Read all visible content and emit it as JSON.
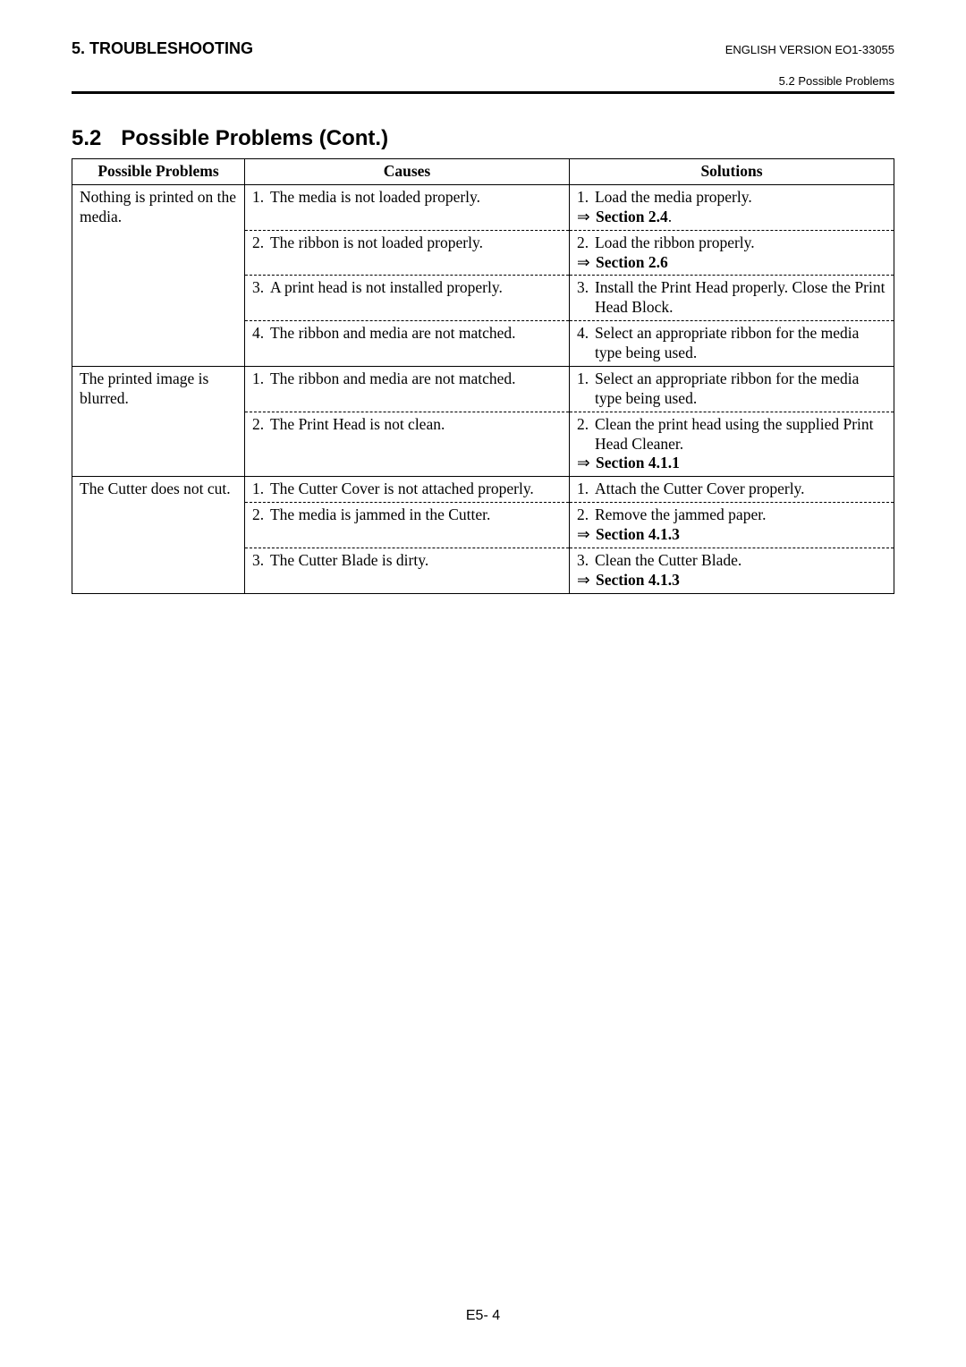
{
  "header": {
    "left": "5. TROUBLESHOOTING",
    "right": "ENGLISH VERSION EO1-33055",
    "sub": "5.2 Possible Problems"
  },
  "section": {
    "number": "5.2",
    "title": "Possible Problems (Cont.)"
  },
  "table": {
    "headers": {
      "problems": "Possible Problems",
      "causes": "Causes",
      "solutions": "Solutions"
    },
    "groups": [
      {
        "problem": "Nothing is printed on the media.",
        "rows": [
          {
            "cause_num": "1.",
            "cause": "The media is not loaded properly.",
            "solution_num": "1.",
            "solution": "Load the media properly.",
            "ref": "Section 2.4",
            "ref_trail": "."
          },
          {
            "cause_num": "2.",
            "cause": "The ribbon is not loaded properly.",
            "solution_num": "2.",
            "solution": "Load the ribbon properly.",
            "ref": "Section 2.6",
            "ref_trail": ""
          },
          {
            "cause_num": "3.",
            "cause": "A print head is not installed properly.",
            "solution_num": "3.",
            "solution": "Install the Print Head properly. Close the Print Head Block.",
            "ref": "",
            "ref_trail": ""
          },
          {
            "cause_num": "4.",
            "cause": "The ribbon and media are not matched.",
            "solution_num": "4.",
            "solution": "Select an appropriate ribbon for the media type being used.",
            "ref": "",
            "ref_trail": ""
          }
        ]
      },
      {
        "problem": "The printed image is blurred.",
        "rows": [
          {
            "cause_num": "1.",
            "cause": "The ribbon and media are not matched.",
            "solution_num": "1.",
            "solution": "Select an appropriate ribbon for the media type being used.",
            "ref": "",
            "ref_trail": ""
          },
          {
            "cause_num": "2.",
            "cause": "The Print Head is not clean.",
            "solution_num": "2.",
            "solution": "Clean the print head using the supplied Print Head Cleaner.",
            "ref": "Section 4.1.1",
            "ref_trail": ""
          }
        ]
      },
      {
        "problem": "The Cutter does not cut.",
        "rows": [
          {
            "cause_num": "1.",
            "cause": "The Cutter Cover is not attached properly.",
            "solution_num": "1.",
            "solution": "Attach the Cutter Cover properly.",
            "ref": "",
            "ref_trail": ""
          },
          {
            "cause_num": "2.",
            "cause": "The media is jammed in the Cutter.",
            "solution_num": "2.",
            "solution": "Remove the jammed paper.",
            "ref": "Section 4.1.3",
            "ref_trail": ""
          },
          {
            "cause_num": "3.",
            "cause": "The Cutter Blade is dirty.",
            "solution_num": "3.",
            "solution": "Clean the Cutter Blade.",
            "ref": "Section 4.1.3",
            "ref_trail": ""
          }
        ]
      }
    ]
  },
  "footer": {
    "page": "E5- 4"
  },
  "arrow_glyph": "⇒"
}
